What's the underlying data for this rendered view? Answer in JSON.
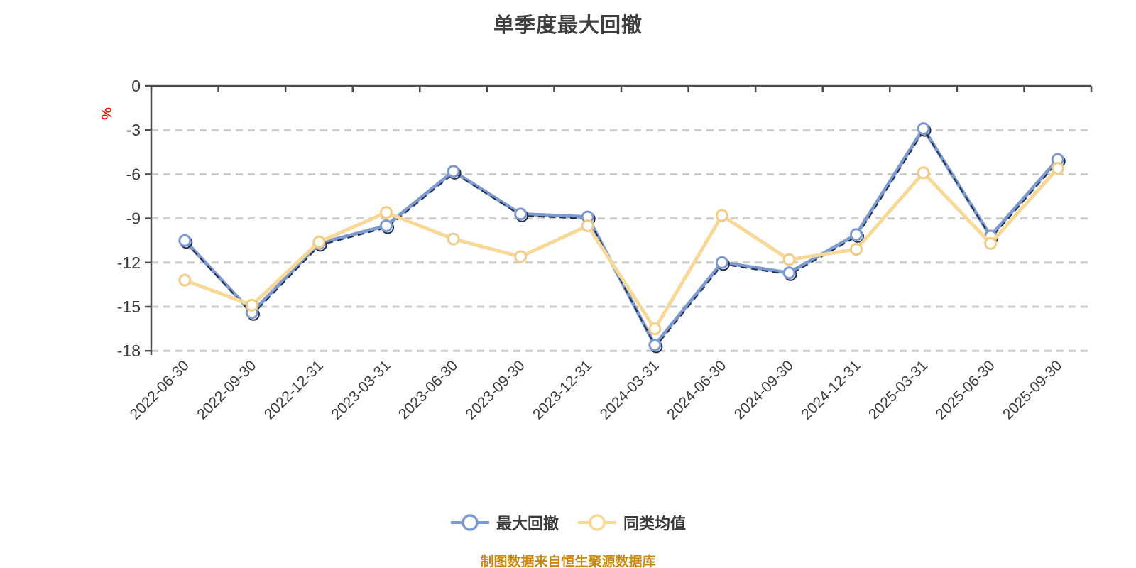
{
  "title": "单季度最大回撤",
  "caption": "制图数据来自恒生聚源数据库",
  "chart_data": {
    "type": "line",
    "title": "单季度最大回撤",
    "xlabel": "",
    "ylabel": "%",
    "ylabel_color": "#FF0000",
    "ylim": [
      -18,
      0
    ],
    "yticks": [
      0,
      -3,
      -6,
      -9,
      -12,
      -15,
      -18
    ],
    "grid": "horizontal-dashed",
    "legend_position": "bottom-center",
    "categories": [
      "2022-06-30",
      "2022-09-30",
      "2022-12-31",
      "2023-03-31",
      "2023-06-30",
      "2023-09-30",
      "2023-12-31",
      "2024-03-31",
      "2024-06-30",
      "2024-09-30",
      "2024-12-31",
      "2025-03-31",
      "2025-06-30",
      "2025-09-30"
    ],
    "series": [
      {
        "name": "最大回撤",
        "color": "#7D9AD0",
        "marker_fill": "#FFFFFF",
        "echo_color": "#22304E",
        "values": [
          -10.5,
          -15.4,
          -10.7,
          -9.5,
          -5.8,
          -8.7,
          -8.9,
          -17.6,
          -12.0,
          -12.7,
          -10.1,
          -2.9,
          -10.2,
          -5.0
        ]
      },
      {
        "name": "同类均值",
        "color": "#F7D896",
        "marker_fill": "#FFFFFF",
        "marker_stroke": "#F2CC85",
        "values": [
          -13.2,
          -14.9,
          -10.6,
          -8.6,
          -10.4,
          -11.6,
          -9.5,
          -16.5,
          -8.8,
          -11.8,
          -11.1,
          -5.9,
          -10.7,
          -5.6
        ]
      }
    ],
    "colors": {
      "axis": "#4D4D4D",
      "grid": "#CCCCCC",
      "tick_label": "#3A3A3A",
      "title": "#3E3E3E",
      "caption": "#C8880F"
    }
  }
}
